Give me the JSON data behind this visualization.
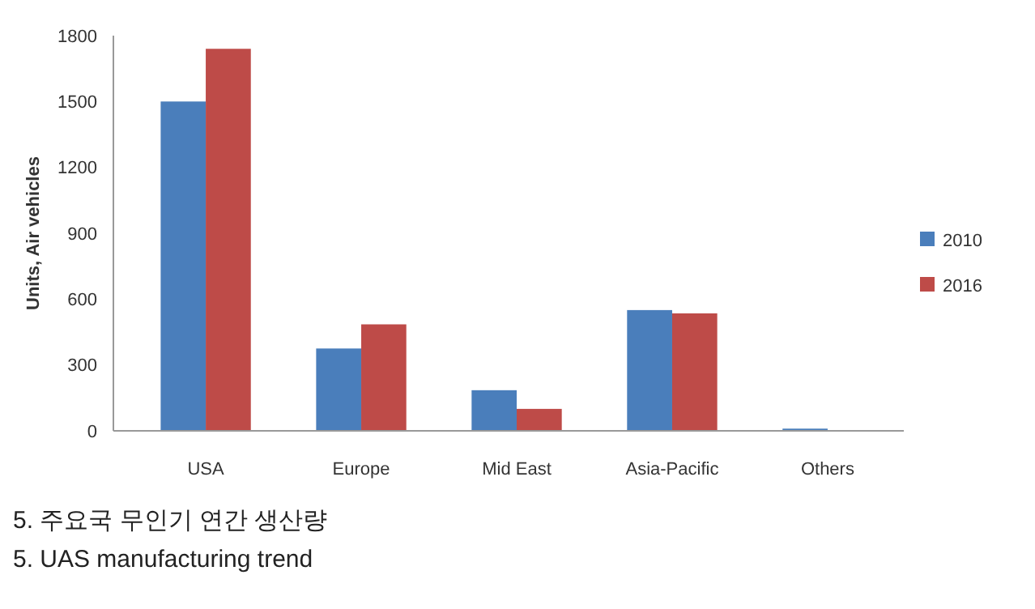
{
  "chart_data": {
    "type": "bar",
    "ylabel": "Units, Air vehicles",
    "categories": [
      "USA",
      "Europe",
      "Mid East",
      "Asia-Pacific",
      "Others"
    ],
    "series": [
      {
        "name": "2010",
        "color": "#4a7ebb",
        "values": [
          1500,
          375,
          185,
          550,
          10
        ]
      },
      {
        "name": "2016",
        "color": "#be4b48",
        "values": [
          1740,
          485,
          100,
          535,
          0
        ]
      }
    ],
    "ylim": [
      0,
      1800
    ],
    "yticks": [
      0,
      300,
      600,
      900,
      1200,
      1500,
      1800
    ],
    "grid": false,
    "legend": "right",
    "annotations": [
      "5. 주요국 무인기 연간 생산량",
      "5. UAS manufacturing trend"
    ]
  }
}
